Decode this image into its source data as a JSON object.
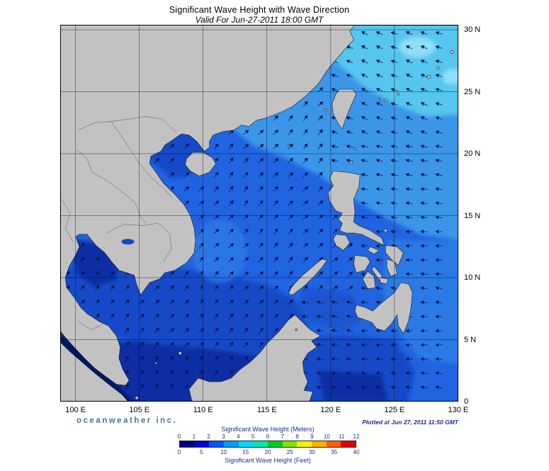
{
  "header": {
    "title": "Significant Wave Height with Wave Direction",
    "subtitle": "Valid For Jun-27-2011 18:00 GMT"
  },
  "map": {
    "lat_labels": [
      "30 N",
      "25 N",
      "20 N",
      "15 N",
      "10 N",
      "5 N",
      "0"
    ],
    "lon_labels": [
      "100 E",
      "105 E",
      "110 E",
      "115 E",
      "120 E",
      "125 E",
      "130 E"
    ]
  },
  "footer": {
    "branding": "oceanweather inc.",
    "plotted_at": "Plotted at Jun 27, 2011 11:50 GMT"
  },
  "legend": {
    "meters_label": "Significant Wave Height (Meters)",
    "meters_ticks": [
      "0",
      "1",
      "2",
      "3",
      "4",
      "5",
      "6",
      "7",
      "8",
      "9",
      "10",
      "11",
      "12"
    ],
    "feet_label": "Significant Wave Height (Feet)",
    "feet_ticks": [
      "0",
      "5",
      "10",
      "15",
      "20",
      "25",
      "30",
      "35",
      "40"
    ],
    "colors": [
      "#000080",
      "#0000d8",
      "#0055ff",
      "#009dff",
      "#00d8ff",
      "#00e8b0",
      "#00cc22",
      "#7fe400",
      "#f4f400",
      "#ffb000",
      "#ff5e00",
      "#e00000"
    ]
  },
  "chart_data": {
    "type": "heatmap",
    "title": "Significant Wave Height with Wave Direction",
    "valid_for": "Jun-27-2011 18:00 GMT",
    "region": {
      "lon_range": [
        "100 E",
        "130 E"
      ],
      "lat_range": [
        "0",
        "30 N"
      ]
    },
    "colorbar": {
      "units_top": "Meters",
      "scale_meters": [
        0,
        1,
        2,
        3,
        4,
        5,
        6,
        7,
        8,
        9,
        10,
        11,
        12
      ],
      "units_bottom": "Feet",
      "scale_feet": [
        0,
        5,
        10,
        15,
        20,
        25,
        30,
        35,
        40
      ]
    }
  }
}
